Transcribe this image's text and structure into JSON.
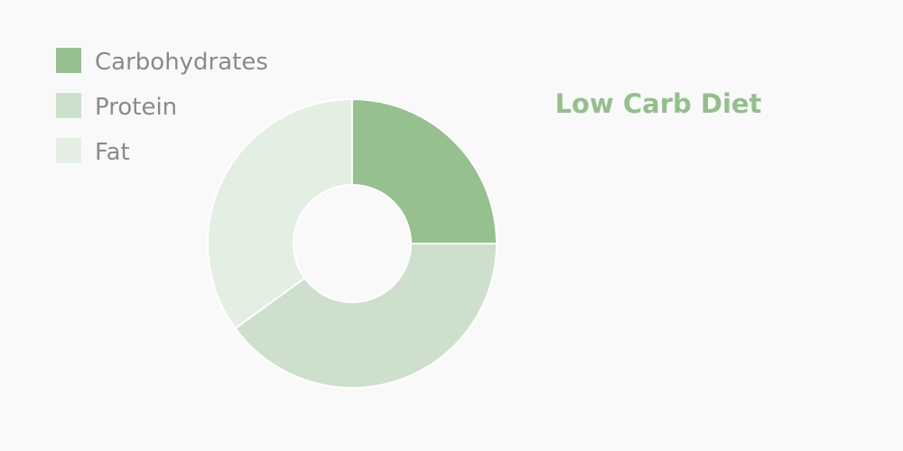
{
  "chart_data": {
    "type": "pie",
    "variant": "donut",
    "title": "Low Carb Diet",
    "categories": [
      "Carbohydrates",
      "Protein",
      "Fat"
    ],
    "values": [
      25,
      40,
      35
    ],
    "colors": [
      "#96c08d",
      "#cde0cb",
      "#e4efe3"
    ],
    "legend_position": "top-left"
  }
}
